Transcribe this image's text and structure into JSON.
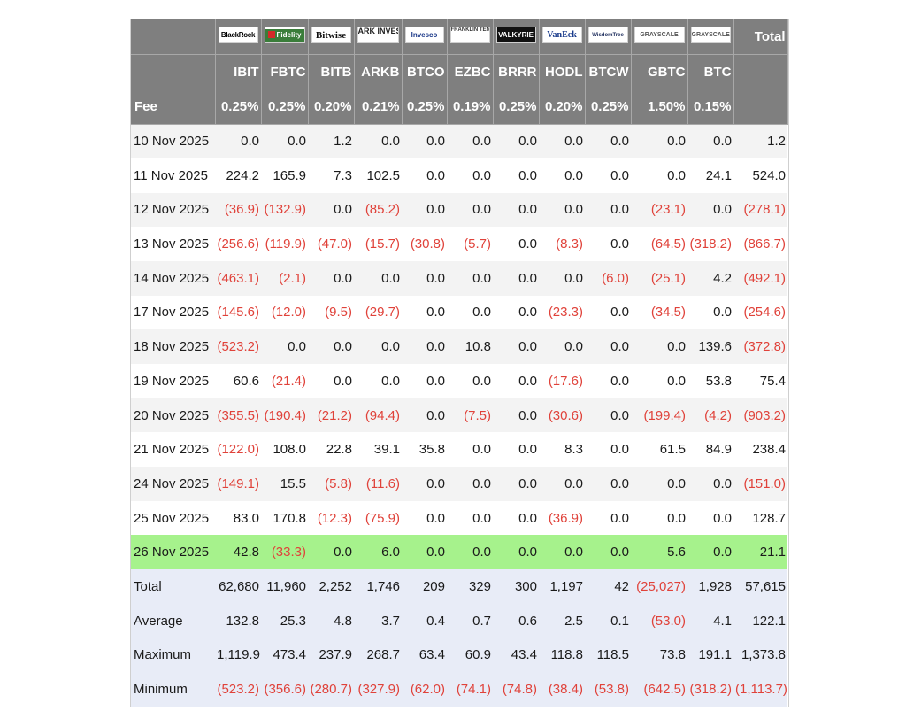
{
  "table": {
    "header_total": "Total",
    "fee_label": "Fee",
    "columns": [
      {
        "logo": "BlackRock",
        "ticker": "IBIT",
        "fee": "0.25%",
        "logo_icon": "blackrock-logo-icon"
      },
      {
        "logo": "Fidelity",
        "ticker": "FBTC",
        "fee": "0.25%",
        "logo_icon": "fidelity-logo-icon"
      },
      {
        "logo": "Bitwise",
        "ticker": "BITB",
        "fee": "0.20%",
        "logo_icon": "bitwise-logo-icon"
      },
      {
        "logo": "ARK INVEST",
        "ticker": "ARKB",
        "fee": "0.21%",
        "logo_icon": "ark-invest-logo-icon"
      },
      {
        "logo": "Invesco",
        "ticker": "BTCO",
        "fee": "0.25%",
        "logo_icon": "invesco-logo-icon"
      },
      {
        "logo": "FRANKLIN TEMPLETON",
        "ticker": "EZBC",
        "fee": "0.19%",
        "logo_icon": "franklin-templeton-logo-icon"
      },
      {
        "logo": "VALKYRIE",
        "ticker": "BRRR",
        "fee": "0.25%",
        "logo_icon": "valkyrie-logo-icon"
      },
      {
        "logo": "VanEck",
        "ticker": "HODL",
        "fee": "0.20%",
        "logo_icon": "vaneck-logo-icon"
      },
      {
        "logo": "WisdomTree",
        "ticker": "BTCW",
        "fee": "0.25%",
        "logo_icon": "wisdomtree-logo-icon"
      },
      {
        "logo": "GRAYSCALE",
        "ticker": "GBTC",
        "fee": "1.50%",
        "logo_icon": "grayscale-logo-icon"
      },
      {
        "logo": "GRAYSCALE",
        "ticker": "BTC",
        "fee": "0.15%",
        "logo_icon": "grayscale-logo-icon"
      }
    ],
    "rows": [
      {
        "date": "10 Nov 2025",
        "values": [
          "0.0",
          "0.0",
          "1.2",
          "0.0",
          "0.0",
          "0.0",
          "0.0",
          "0.0",
          "0.0",
          "0.0",
          "0.0"
        ],
        "total": "1.2"
      },
      {
        "date": "11 Nov 2025",
        "values": [
          "224.2",
          "165.9",
          "7.3",
          "102.5",
          "0.0",
          "0.0",
          "0.0",
          "0.0",
          "0.0",
          "0.0",
          "24.1"
        ],
        "total": "524.0"
      },
      {
        "date": "12 Nov 2025",
        "values": [
          "(36.9)",
          "(132.9)",
          "0.0",
          "(85.2)",
          "0.0",
          "0.0",
          "0.0",
          "0.0",
          "0.0",
          "(23.1)",
          "0.0"
        ],
        "total": "(278.1)"
      },
      {
        "date": "13 Nov 2025",
        "values": [
          "(256.6)",
          "(119.9)",
          "(47.0)",
          "(15.7)",
          "(30.8)",
          "(5.7)",
          "0.0",
          "(8.3)",
          "0.0",
          "(64.5)",
          "(318.2)"
        ],
        "total": "(866.7)"
      },
      {
        "date": "14 Nov 2025",
        "values": [
          "(463.1)",
          "(2.1)",
          "0.0",
          "0.0",
          "0.0",
          "0.0",
          "0.0",
          "0.0",
          "(6.0)",
          "(25.1)",
          "4.2"
        ],
        "total": "(492.1)"
      },
      {
        "date": "17 Nov 2025",
        "values": [
          "(145.6)",
          "(12.0)",
          "(9.5)",
          "(29.7)",
          "0.0",
          "0.0",
          "0.0",
          "(23.3)",
          "0.0",
          "(34.5)",
          "0.0"
        ],
        "total": "(254.6)"
      },
      {
        "date": "18 Nov 2025",
        "values": [
          "(523.2)",
          "0.0",
          "0.0",
          "0.0",
          "0.0",
          "10.8",
          "0.0",
          "0.0",
          "0.0",
          "0.0",
          "139.6"
        ],
        "total": "(372.8)"
      },
      {
        "date": "19 Nov 2025",
        "values": [
          "60.6",
          "(21.4)",
          "0.0",
          "0.0",
          "0.0",
          "0.0",
          "0.0",
          "(17.6)",
          "0.0",
          "0.0",
          "53.8"
        ],
        "total": "75.4"
      },
      {
        "date": "20 Nov 2025",
        "values": [
          "(355.5)",
          "(190.4)",
          "(21.2)",
          "(94.4)",
          "0.0",
          "(7.5)",
          "0.0",
          "(30.6)",
          "0.0",
          "(199.4)",
          "(4.2)"
        ],
        "total": "(903.2)"
      },
      {
        "date": "21 Nov 2025",
        "values": [
          "(122.0)",
          "108.0",
          "22.8",
          "39.1",
          "35.8",
          "0.0",
          "0.0",
          "8.3",
          "0.0",
          "61.5",
          "84.9"
        ],
        "total": "238.4"
      },
      {
        "date": "24 Nov 2025",
        "values": [
          "(149.1)",
          "15.5",
          "(5.8)",
          "(11.6)",
          "0.0",
          "0.0",
          "0.0",
          "0.0",
          "0.0",
          "0.0",
          "0.0"
        ],
        "total": "(151.0)"
      },
      {
        "date": "25 Nov 2025",
        "values": [
          "83.0",
          "170.8",
          "(12.3)",
          "(75.9)",
          "0.0",
          "0.0",
          "0.0",
          "(36.9)",
          "0.0",
          "0.0",
          "0.0"
        ],
        "total": "128.7"
      },
      {
        "date": "26 Nov 2025",
        "values": [
          "42.8",
          "(33.3)",
          "0.0",
          "6.0",
          "0.0",
          "0.0",
          "0.0",
          "0.0",
          "0.0",
          "5.6",
          "0.0"
        ],
        "total": "21.1",
        "highlight": true
      }
    ],
    "summary": [
      {
        "label": "Total",
        "values": [
          "62,680",
          "11,960",
          "2,252",
          "1,746",
          "209",
          "329",
          "300",
          "1,197",
          "42",
          "(25,027)",
          "1,928"
        ],
        "total": "57,615"
      },
      {
        "label": "Average",
        "values": [
          "132.8",
          "25.3",
          "4.8",
          "3.7",
          "0.4",
          "0.7",
          "0.6",
          "2.5",
          "0.1",
          "(53.0)",
          "4.1"
        ],
        "total": "122.1"
      },
      {
        "label": "Maximum",
        "values": [
          "1,119.9",
          "473.4",
          "237.9",
          "268.7",
          "63.4",
          "60.9",
          "43.4",
          "118.8",
          "118.5",
          "73.8",
          "191.1"
        ],
        "total": "1,373.8"
      },
      {
        "label": "Minimum",
        "values": [
          "(523.2)",
          "(356.6)",
          "(280.7)",
          "(327.9)",
          "(62.0)",
          "(74.1)",
          "(74.8)",
          "(38.4)",
          "(53.8)",
          "(642.5)",
          "(318.2)"
        ],
        "total": "(1,113.7)"
      }
    ],
    "colors": {
      "header_bg": "#7f7f7f",
      "negative": "#e0423a",
      "highlight_row": "#a6f28c",
      "summary_bg": "#e8ecf7",
      "stripe": "#f3f3f3"
    }
  }
}
